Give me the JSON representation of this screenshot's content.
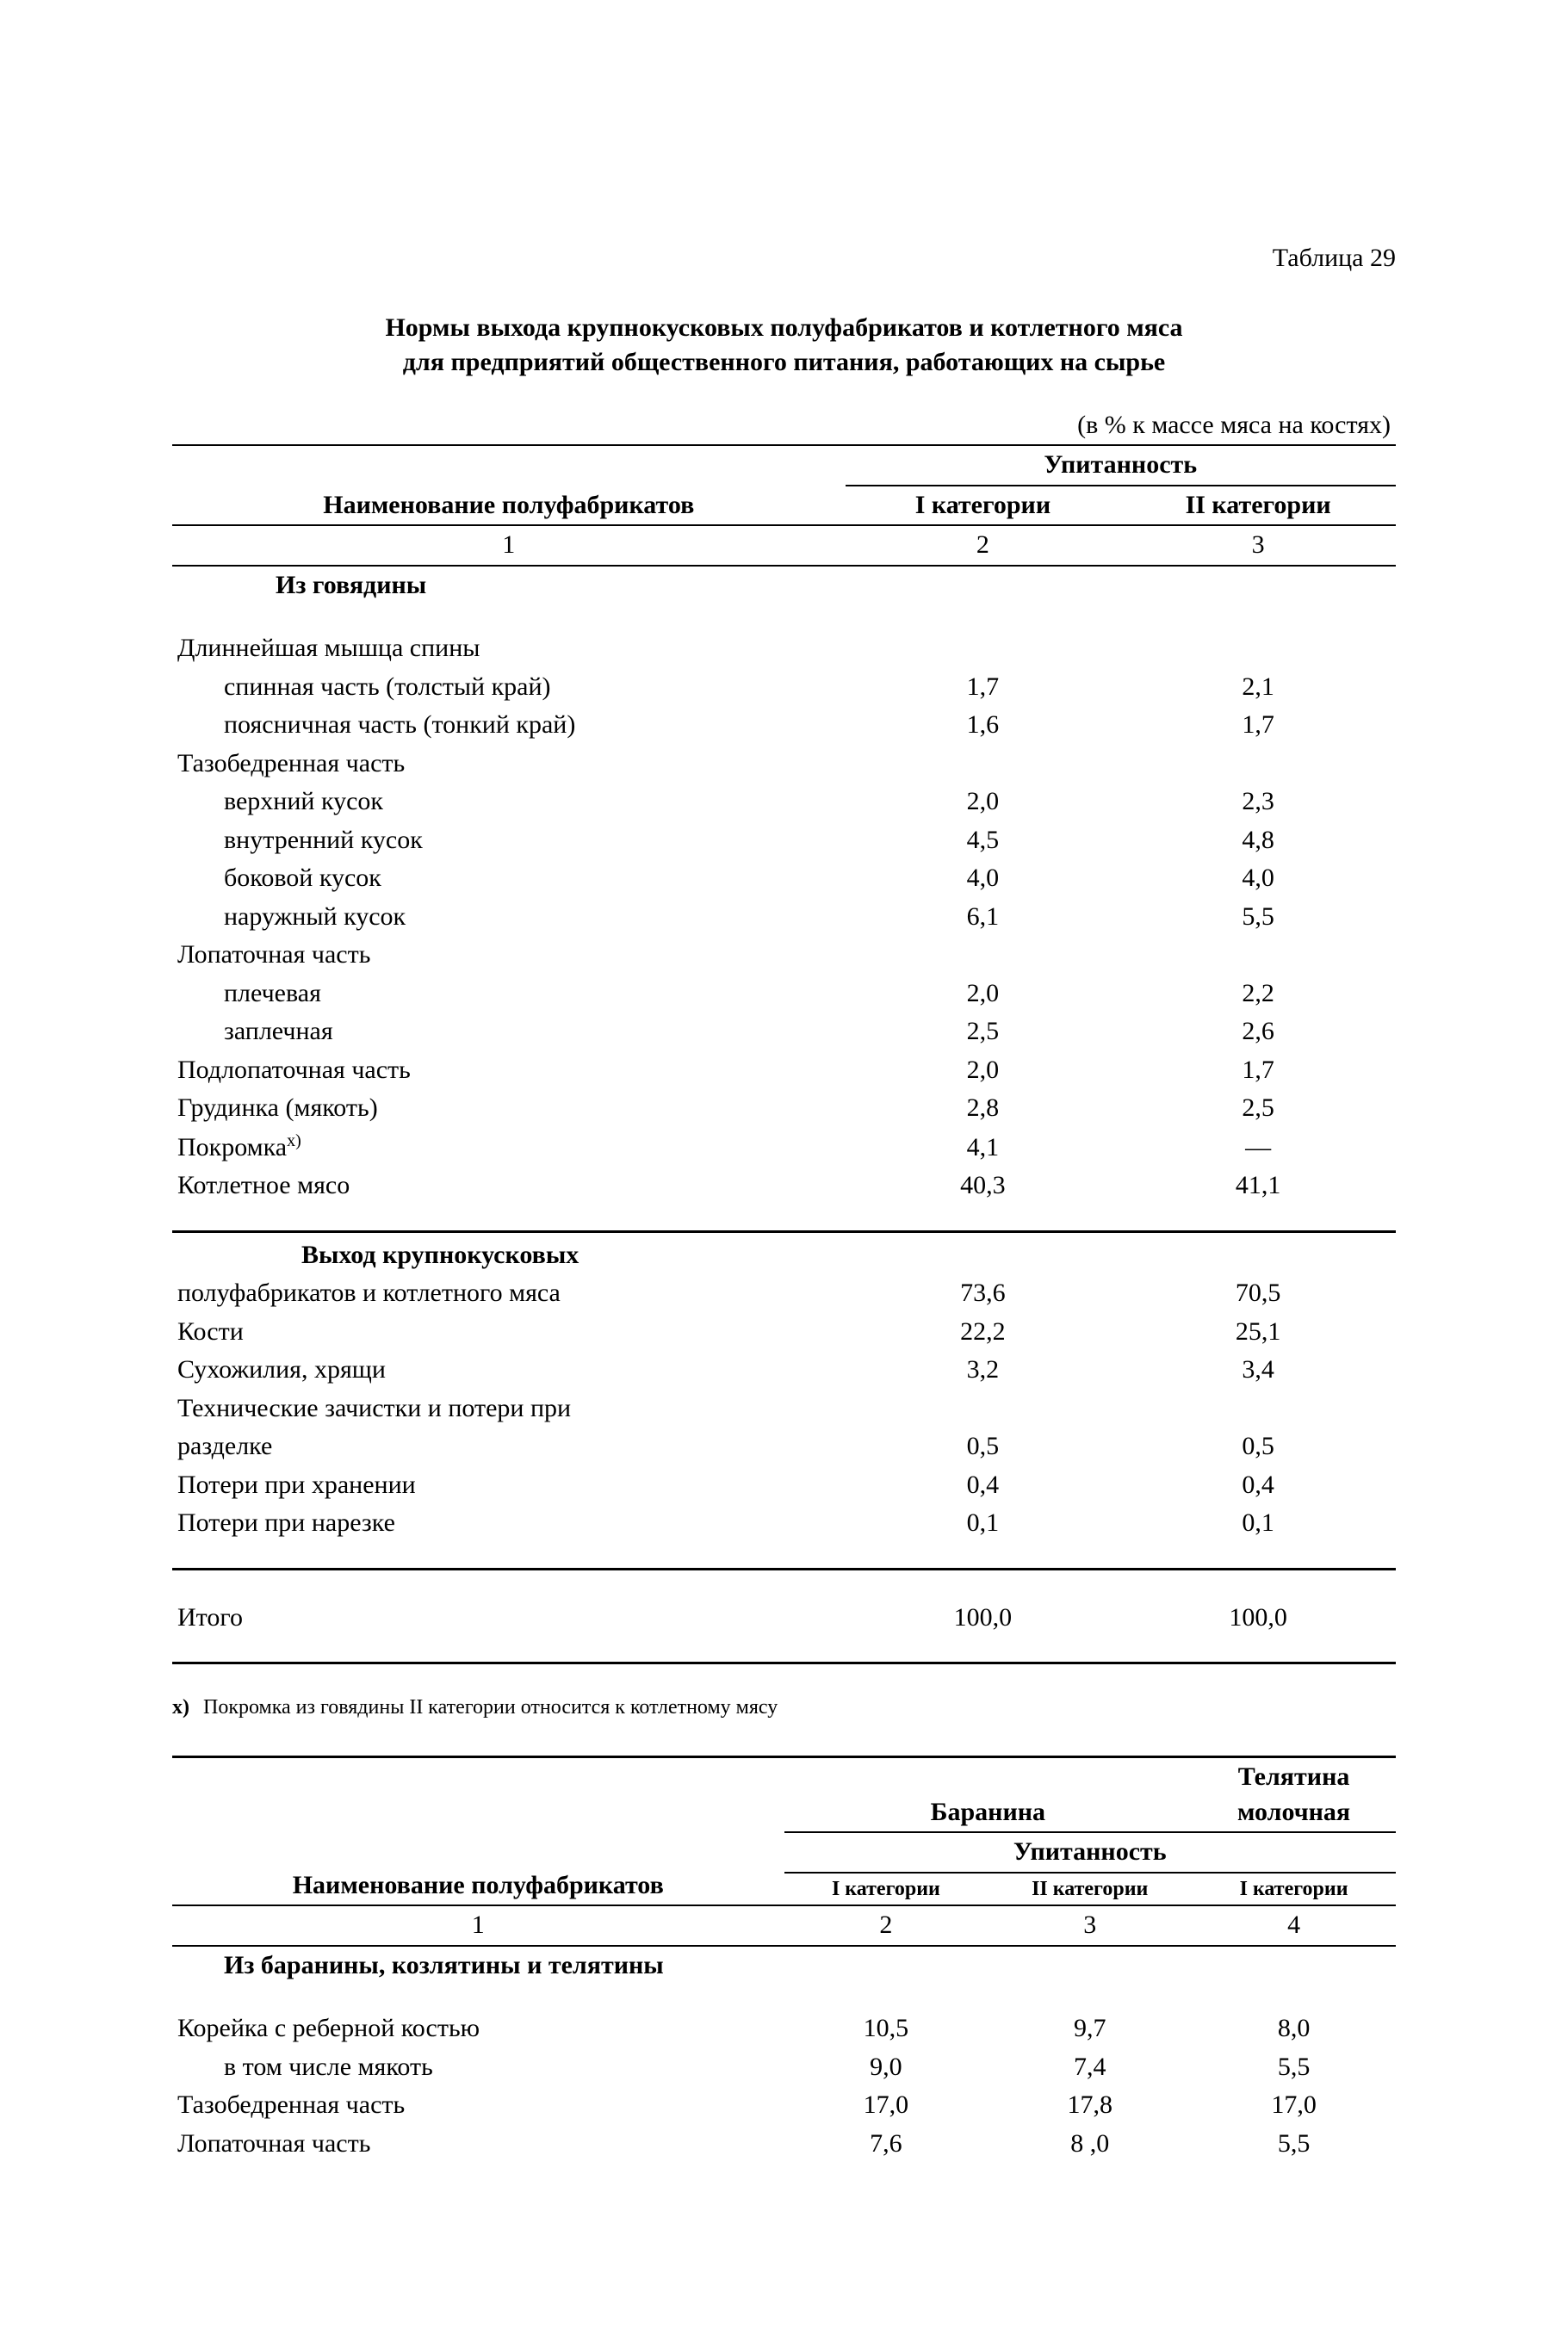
{
  "meta": {
    "table_number_label": "Таблица 29",
    "title_line1": "Нормы выхода крупнокусковых полуфабрикатов и котлетного мяса",
    "title_line2": "для предприятий общественного питания, работающих на сырье",
    "unit_note": "(в % к массе мяса на костях)"
  },
  "table1": {
    "head_name": "Наименование полуфабрикатов",
    "head_group": "Упитанность",
    "head_cat1": "I категории",
    "head_cat2": "II категории",
    "colnum1": "1",
    "colnum2": "2",
    "colnum3": "3",
    "section_beef": "Из говядины",
    "rows_beef": [
      {
        "label": "Длиннейшая мышца спины",
        "indent": 0,
        "v1": "",
        "v2": ""
      },
      {
        "label": "спинная часть (толстый край)",
        "indent": 1,
        "v1": "1,7",
        "v2": "2,1"
      },
      {
        "label": "поясничная часть (тонкий край)",
        "indent": 1,
        "v1": "1,6",
        "v2": "1,7"
      },
      {
        "label": "Тазобедренная часть",
        "indent": 0,
        "v1": "",
        "v2": ""
      },
      {
        "label": "верхний кусок",
        "indent": 1,
        "v1": "2,0",
        "v2": "2,3"
      },
      {
        "label": "внутренний кусок",
        "indent": 1,
        "v1": "4,5",
        "v2": "4,8"
      },
      {
        "label": "боковой кусок",
        "indent": 1,
        "v1": "4,0",
        "v2": "4,0"
      },
      {
        "label": "наружный кусок",
        "indent": 1,
        "v1": "6,1",
        "v2": "5,5"
      },
      {
        "label": "Лопаточная часть",
        "indent": 0,
        "v1": "",
        "v2": ""
      },
      {
        "label": "плечевая",
        "indent": 1,
        "v1": "2,0",
        "v2": "2,2"
      },
      {
        "label": "заплечная",
        "indent": 1,
        "v1": "2,5",
        "v2": "2,6"
      },
      {
        "label": "Подлопаточная часть",
        "indent": 0,
        "v1": "2,0",
        "v2": "1,7"
      },
      {
        "label": "Грудинка (мякоть)",
        "indent": 0,
        "v1": "2,8",
        "v2": "2,5"
      },
      {
        "label": "Покромка",
        "indent": 0,
        "v1": "4,1",
        "v2": "—",
        "foot": "х)"
      },
      {
        "label": "Котлетное мясо",
        "indent": 0,
        "v1": "40,3",
        "v2": "41,1"
      }
    ],
    "section_output_head1": "Выход крупнокусковых",
    "section_output_head2": "полуфабрикатов и котлетного мяса",
    "rows_output": [
      {
        "label": "",
        "v1": "73,6",
        "v2": "70,5"
      },
      {
        "label": "Кости",
        "v1": "22,2",
        "v2": "25,1"
      },
      {
        "label": "Сухожилия, хрящи",
        "v1": "3,2",
        "v2": "3,4"
      },
      {
        "label": "Технические зачистки и потери при разделке",
        "two_line": true,
        "line1": "Технические  зачистки  и  потери  при",
        "line2": "разделке",
        "v1": "0,5",
        "v2": "0,5"
      },
      {
        "label": "Потери при хранении",
        "v1": "0,4",
        "v2": "0,4"
      },
      {
        "label": "Потери при нарезке",
        "v1": "0,1",
        "v2": "0,1"
      }
    ],
    "total_label": "Итого",
    "total_v1": "100,0",
    "total_v2": "100,0"
  },
  "footnote": {
    "mark": "х)",
    "text": "Покромка из говядины II категории относится к котлетному мясу"
  },
  "table2": {
    "head_name": "Наименование полуфабрикатов",
    "head_top1": "Баранина",
    "head_top2": "Телятина молочная",
    "head_group": "Упитанность",
    "head_c1": "I категории",
    "head_c2": "II категории",
    "head_c3": "I категории",
    "colnum1": "1",
    "colnum2": "2",
    "colnum3": "3",
    "colnum4": "4",
    "section": "Из баранины, козлятины и телятины",
    "rows": [
      {
        "label": "Корейка с реберной костью",
        "indent": 0,
        "v1": "10,5",
        "v2": "9,7",
        "v3": "8,0"
      },
      {
        "label": "в том числе мякоть",
        "indent": 1,
        "v1": "9,0",
        "v2": "7,4",
        "v3": "5,5"
      },
      {
        "label": "Тазобедренная часть",
        "indent": 0,
        "v1": "17,0",
        "v2": "17,8",
        "v3": "17,0"
      },
      {
        "label": "Лопаточная часть",
        "indent": 0,
        "v1": "7,6",
        "v2": "8 ,0",
        "v3": "5,5"
      }
    ]
  }
}
